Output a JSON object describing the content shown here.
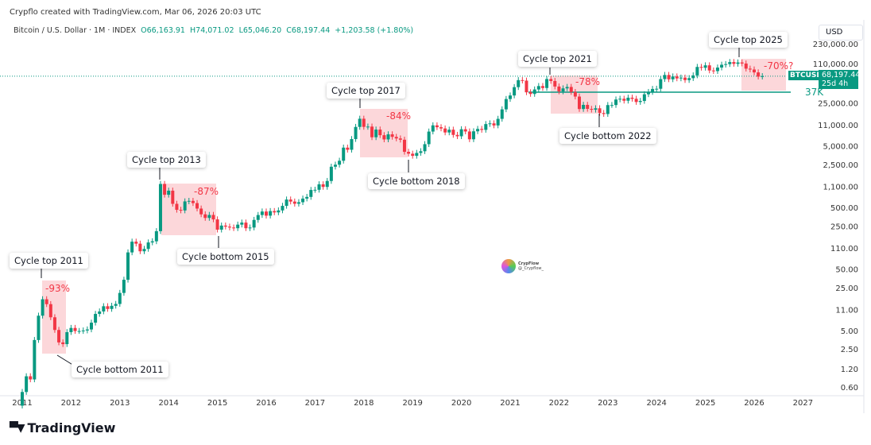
{
  "header": {
    "credit": "Crypflo created with TradingView.com, Mar 06, 2026 20:03 UTC",
    "symbol": "Bitcoin / U.S. Dollar · 1M · INDEX",
    "open": "O66,163.91",
    "high": "H74,071.02",
    "low": "L65,046.20",
    "close": "C68,197.44",
    "change": "+1,203.58 (+1.80%)"
  },
  "price_axis": {
    "currency": "USD",
    "symbol_tag": "BTCUSD",
    "last_price": "68,197.44",
    "countdown": "25d 4h"
  },
  "watermark": {
    "name": "CrypFlow",
    "handle": "@_Crypflow_"
  },
  "brand": "TradingView",
  "colors": {
    "up": "#089981",
    "down": "#f23645",
    "zone": "rgba(242,54,69,0.2)"
  },
  "chart_data": {
    "type": "candlestick",
    "scale": "log",
    "interval": "1M",
    "start": "2011-01",
    "closes": [
      0.5,
      0.9,
      0.8,
      3.5,
      8.7,
      16.1,
      13.4,
      8.2,
      5.1,
      3.2,
      3.0,
      4.7,
      5.5,
      4.9,
      4.9,
      5.0,
      5.2,
      6.7,
      9.3,
      10.2,
      12.4,
      11.2,
      12.6,
      13.5,
      20.4,
      33.4,
      93,
      139,
      129,
      97,
      106,
      135,
      141,
      206,
      1205,
      805,
      938,
      573,
      458,
      447,
      628,
      640,
      589,
      480,
      387,
      338,
      378,
      320,
      218,
      254,
      244,
      236,
      230,
      263,
      284,
      230,
      236,
      314,
      377,
      430,
      368,
      437,
      416,
      448,
      531,
      673,
      624,
      575,
      609,
      698,
      742,
      963,
      970,
      1190,
      1080,
      1348,
      2300,
      2480,
      2875,
      4700,
      4340,
      6470,
      10200,
      13860,
      10220,
      10330,
      6930,
      9240,
      7490,
      6390,
      7730,
      7030,
      6625,
      6317,
      4017,
      3742,
      3457,
      3854,
      4105,
      5350,
      8574,
      10817,
      10085,
      9630,
      8293,
      9199,
      7569,
      7193,
      9350,
      8600,
      6424,
      8658,
      9461,
      9137,
      11351,
      11655,
      10784,
      13804,
      19700,
      28990,
      33100,
      45240,
      58800,
      57750,
      37300,
      35040,
      41460,
      47100,
      43790,
      61300,
      56950,
      46300,
      38480,
      43190,
      45540,
      37700,
      31790,
      19940,
      23290,
      20050,
      19430,
      20500,
      17170,
      16550,
      23130,
      23150,
      28480,
      29270,
      27220,
      30480,
      29230,
      25940,
      26970,
      34640,
      37720,
      42270,
      42580,
      61130,
      71330,
      60640,
      67500,
      62700,
      64600,
      58970,
      63330,
      70200,
      96400,
      93400,
      102400,
      84400,
      82500,
      94200,
      104600,
      107100,
      115700,
      108200,
      114000,
      109500,
      90400,
      87500,
      78600,
      67000,
      68197.44
    ],
    "y_ticks": [
      {
        "v": 230000,
        "l": "230,000.00"
      },
      {
        "v": 110000,
        "l": "110,000.00"
      },
      {
        "v": 25000,
        "l": "25,000.00"
      },
      {
        "v": 11000,
        "l": "11,000.00"
      },
      {
        "v": 5000,
        "l": "5,000.00"
      },
      {
        "v": 2500,
        "l": "2,500.00"
      },
      {
        "v": 1100,
        "l": "1,100.00"
      },
      {
        "v": 500,
        "l": "500.00"
      },
      {
        "v": 250,
        "l": "250.00"
      },
      {
        "v": 110,
        "l": "110.00"
      },
      {
        "v": 50,
        "l": "50.00"
      },
      {
        "v": 25,
        "l": "25.00"
      },
      {
        "v": 11,
        "l": "11.00"
      },
      {
        "v": 5,
        "l": "5.00"
      },
      {
        "v": 2.5,
        "l": "2.50"
      },
      {
        "v": 1.2,
        "l": "1.20"
      },
      {
        "v": 0.6,
        "l": "0.60"
      }
    ],
    "x_ticks": [
      "2011",
      "2012",
      "2013",
      "2014",
      "2015",
      "2016",
      "2017",
      "2018",
      "2019",
      "2020",
      "2021",
      "2022",
      "2023",
      "2024",
      "2025",
      "2026",
      "2027"
    ],
    "level_line": {
      "value": 37000,
      "label": "37K"
    },
    "annotations": [
      {
        "top": "Cycle top 2011",
        "drawdown": "-93%",
        "bottom": "Cycle bottom 2011"
      },
      {
        "top": "Cycle top 2013",
        "drawdown": "-87%",
        "bottom": "Cycle bottom 2015"
      },
      {
        "top": "Cycle top 2017",
        "drawdown": "-84%",
        "bottom": "Cycle bottom 2018"
      },
      {
        "top": "Cycle top 2021",
        "drawdown": "-78%",
        "bottom": "Cycle bottom 2022"
      },
      {
        "top": "Cycle top 2025",
        "drawdown": "-70%?"
      }
    ]
  }
}
